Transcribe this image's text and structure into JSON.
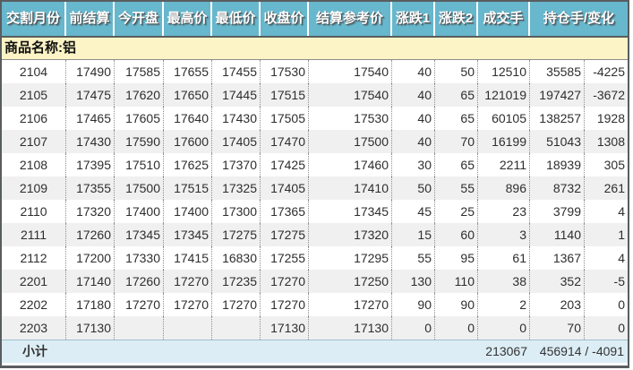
{
  "colors": {
    "header_bg": "#67B7CD",
    "header_text": "#FFFFFF",
    "product_row_bg": "#FCF4C6",
    "row_alt_bg": "#F0F0F0",
    "footer_bg": "#DCEDF5",
    "border_dark": "#595D5F"
  },
  "table": {
    "product_label": "商品名称:铝",
    "columns": [
      {
        "key": "month",
        "label": "交割月份"
      },
      {
        "key": "prev-settle",
        "label": "前结算"
      },
      {
        "key": "open",
        "label": "今开盘"
      },
      {
        "key": "high",
        "label": "最高价"
      },
      {
        "key": "low",
        "label": "最低价"
      },
      {
        "key": "close",
        "label": "收盘价"
      },
      {
        "key": "settle-ref",
        "label": "结算参考价"
      },
      {
        "key": "change1",
        "label": "涨跌1"
      },
      {
        "key": "change2",
        "label": "涨跌2"
      },
      {
        "key": "volume",
        "label": "成交手"
      },
      {
        "key": "open-interest-change",
        "label": "持仓手/变化"
      }
    ],
    "rows": [
      [
        "2104",
        "17490",
        "17585",
        "17655",
        "17455",
        "17530",
        "17540",
        "40",
        "50",
        "12510",
        "35585",
        "-4225"
      ],
      [
        "2105",
        "17475",
        "17620",
        "17650",
        "17445",
        "17515",
        "17540",
        "40",
        "65",
        "121019",
        "197427",
        "-3672"
      ],
      [
        "2106",
        "17465",
        "17605",
        "17640",
        "17430",
        "17505",
        "17530",
        "40",
        "65",
        "60105",
        "138257",
        "1928"
      ],
      [
        "2107",
        "17430",
        "17590",
        "17600",
        "17405",
        "17470",
        "17500",
        "40",
        "70",
        "16199",
        "51043",
        "1308"
      ],
      [
        "2108",
        "17395",
        "17510",
        "17625",
        "17370",
        "17425",
        "17460",
        "30",
        "65",
        "2211",
        "18939",
        "305"
      ],
      [
        "2109",
        "17355",
        "17500",
        "17515",
        "17325",
        "17405",
        "17410",
        "50",
        "55",
        "896",
        "8732",
        "261"
      ],
      [
        "2110",
        "17320",
        "17400",
        "17400",
        "17300",
        "17365",
        "17345",
        "45",
        "25",
        "23",
        "3799",
        "4"
      ],
      [
        "2111",
        "17260",
        "17345",
        "17345",
        "17275",
        "17275",
        "17320",
        "15",
        "60",
        "3",
        "1140",
        "1"
      ],
      [
        "2112",
        "17200",
        "17330",
        "17415",
        "16830",
        "17255",
        "17295",
        "55",
        "95",
        "61",
        "1367",
        "4"
      ],
      [
        "2201",
        "17140",
        "17260",
        "17270",
        "17235",
        "17270",
        "17250",
        "130",
        "110",
        "38",
        "352",
        "-5"
      ],
      [
        "2202",
        "17180",
        "17270",
        "17270",
        "17270",
        "17270",
        "17270",
        "90",
        "90",
        "2",
        "203",
        "0"
      ],
      [
        "2203",
        "17130",
        "",
        "",
        "",
        "17130",
        "17130",
        "0",
        "0",
        "0",
        "70",
        "0"
      ]
    ],
    "footer": {
      "label": "小计",
      "volume": "213067",
      "oi_change": "456914 / -4091"
    }
  }
}
